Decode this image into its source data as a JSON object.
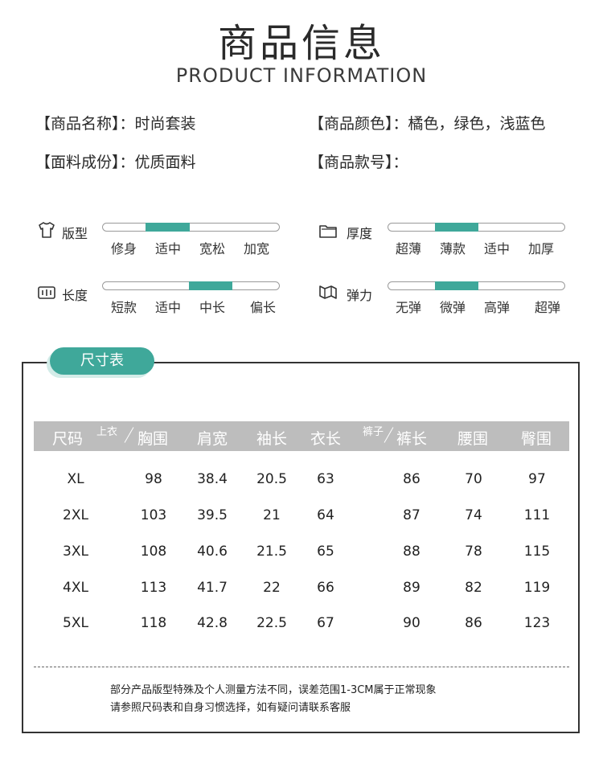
{
  "header": {
    "title_cn": "商品信息",
    "title_en": "PRODUCT INFORMATION"
  },
  "info": {
    "name": "【商品名称】：时尚套装",
    "color": "【商品颜色】：橘色，绿色，浅蓝色",
    "fabric": "【面料成份】：优质面料",
    "style_no": "【商品款号】："
  },
  "attributes": {
    "fit": {
      "icon": "tshirt-icon",
      "label": "版型",
      "options": [
        "修身",
        "适中",
        "宽松",
        "加宽"
      ],
      "selected_index": 1
    },
    "thickness": {
      "icon": "folder-icon",
      "label": "厚度",
      "options": [
        "超薄",
        "薄款",
        "适中",
        "加厚"
      ],
      "selected_index": 1
    },
    "length": {
      "icon": "ruler-icon",
      "label": "长度",
      "options": [
        "短款",
        "适中",
        "中长",
        "偏长"
      ],
      "selected_index": 2
    },
    "elasticity": {
      "icon": "stretch-icon",
      "label": "弹力",
      "options": [
        "无弹",
        "微弹",
        "高弹",
        "超弹"
      ],
      "selected_index": 1
    }
  },
  "size_table": {
    "tab_label": "尺寸表",
    "col_size": "尺码",
    "top_group": "上衣",
    "bottom_group": "裤子",
    "headers": [
      "胸围",
      "肩宽",
      "袖长",
      "衣长",
      "裤长",
      "腰围",
      "臀围"
    ],
    "rows": [
      [
        "XL",
        "98",
        "38.4",
        "20.5",
        "63",
        "86",
        "70",
        "97"
      ],
      [
        "2XL",
        "103",
        "39.5",
        "21",
        "64",
        "87",
        "74",
        "111"
      ],
      [
        "3XL",
        "108",
        "40.6",
        "21.5",
        "65",
        "88",
        "78",
        "115"
      ],
      [
        "4XL",
        "113",
        "41.7",
        "22",
        "66",
        "89",
        "82",
        "119"
      ],
      [
        "5XL",
        "118",
        "42.8",
        "22.5",
        "67",
        "90",
        "86",
        "123"
      ]
    ],
    "note_1": "部分产品版型特殊及个人测量方法不同，误差范围1-3CM属于正常现象",
    "note_2": "请参照尺码表和自身习惯选择，如有疑问请联系客服"
  },
  "colors": {
    "accent": "#3fa89a",
    "header_band": "#bdbdbd"
  }
}
